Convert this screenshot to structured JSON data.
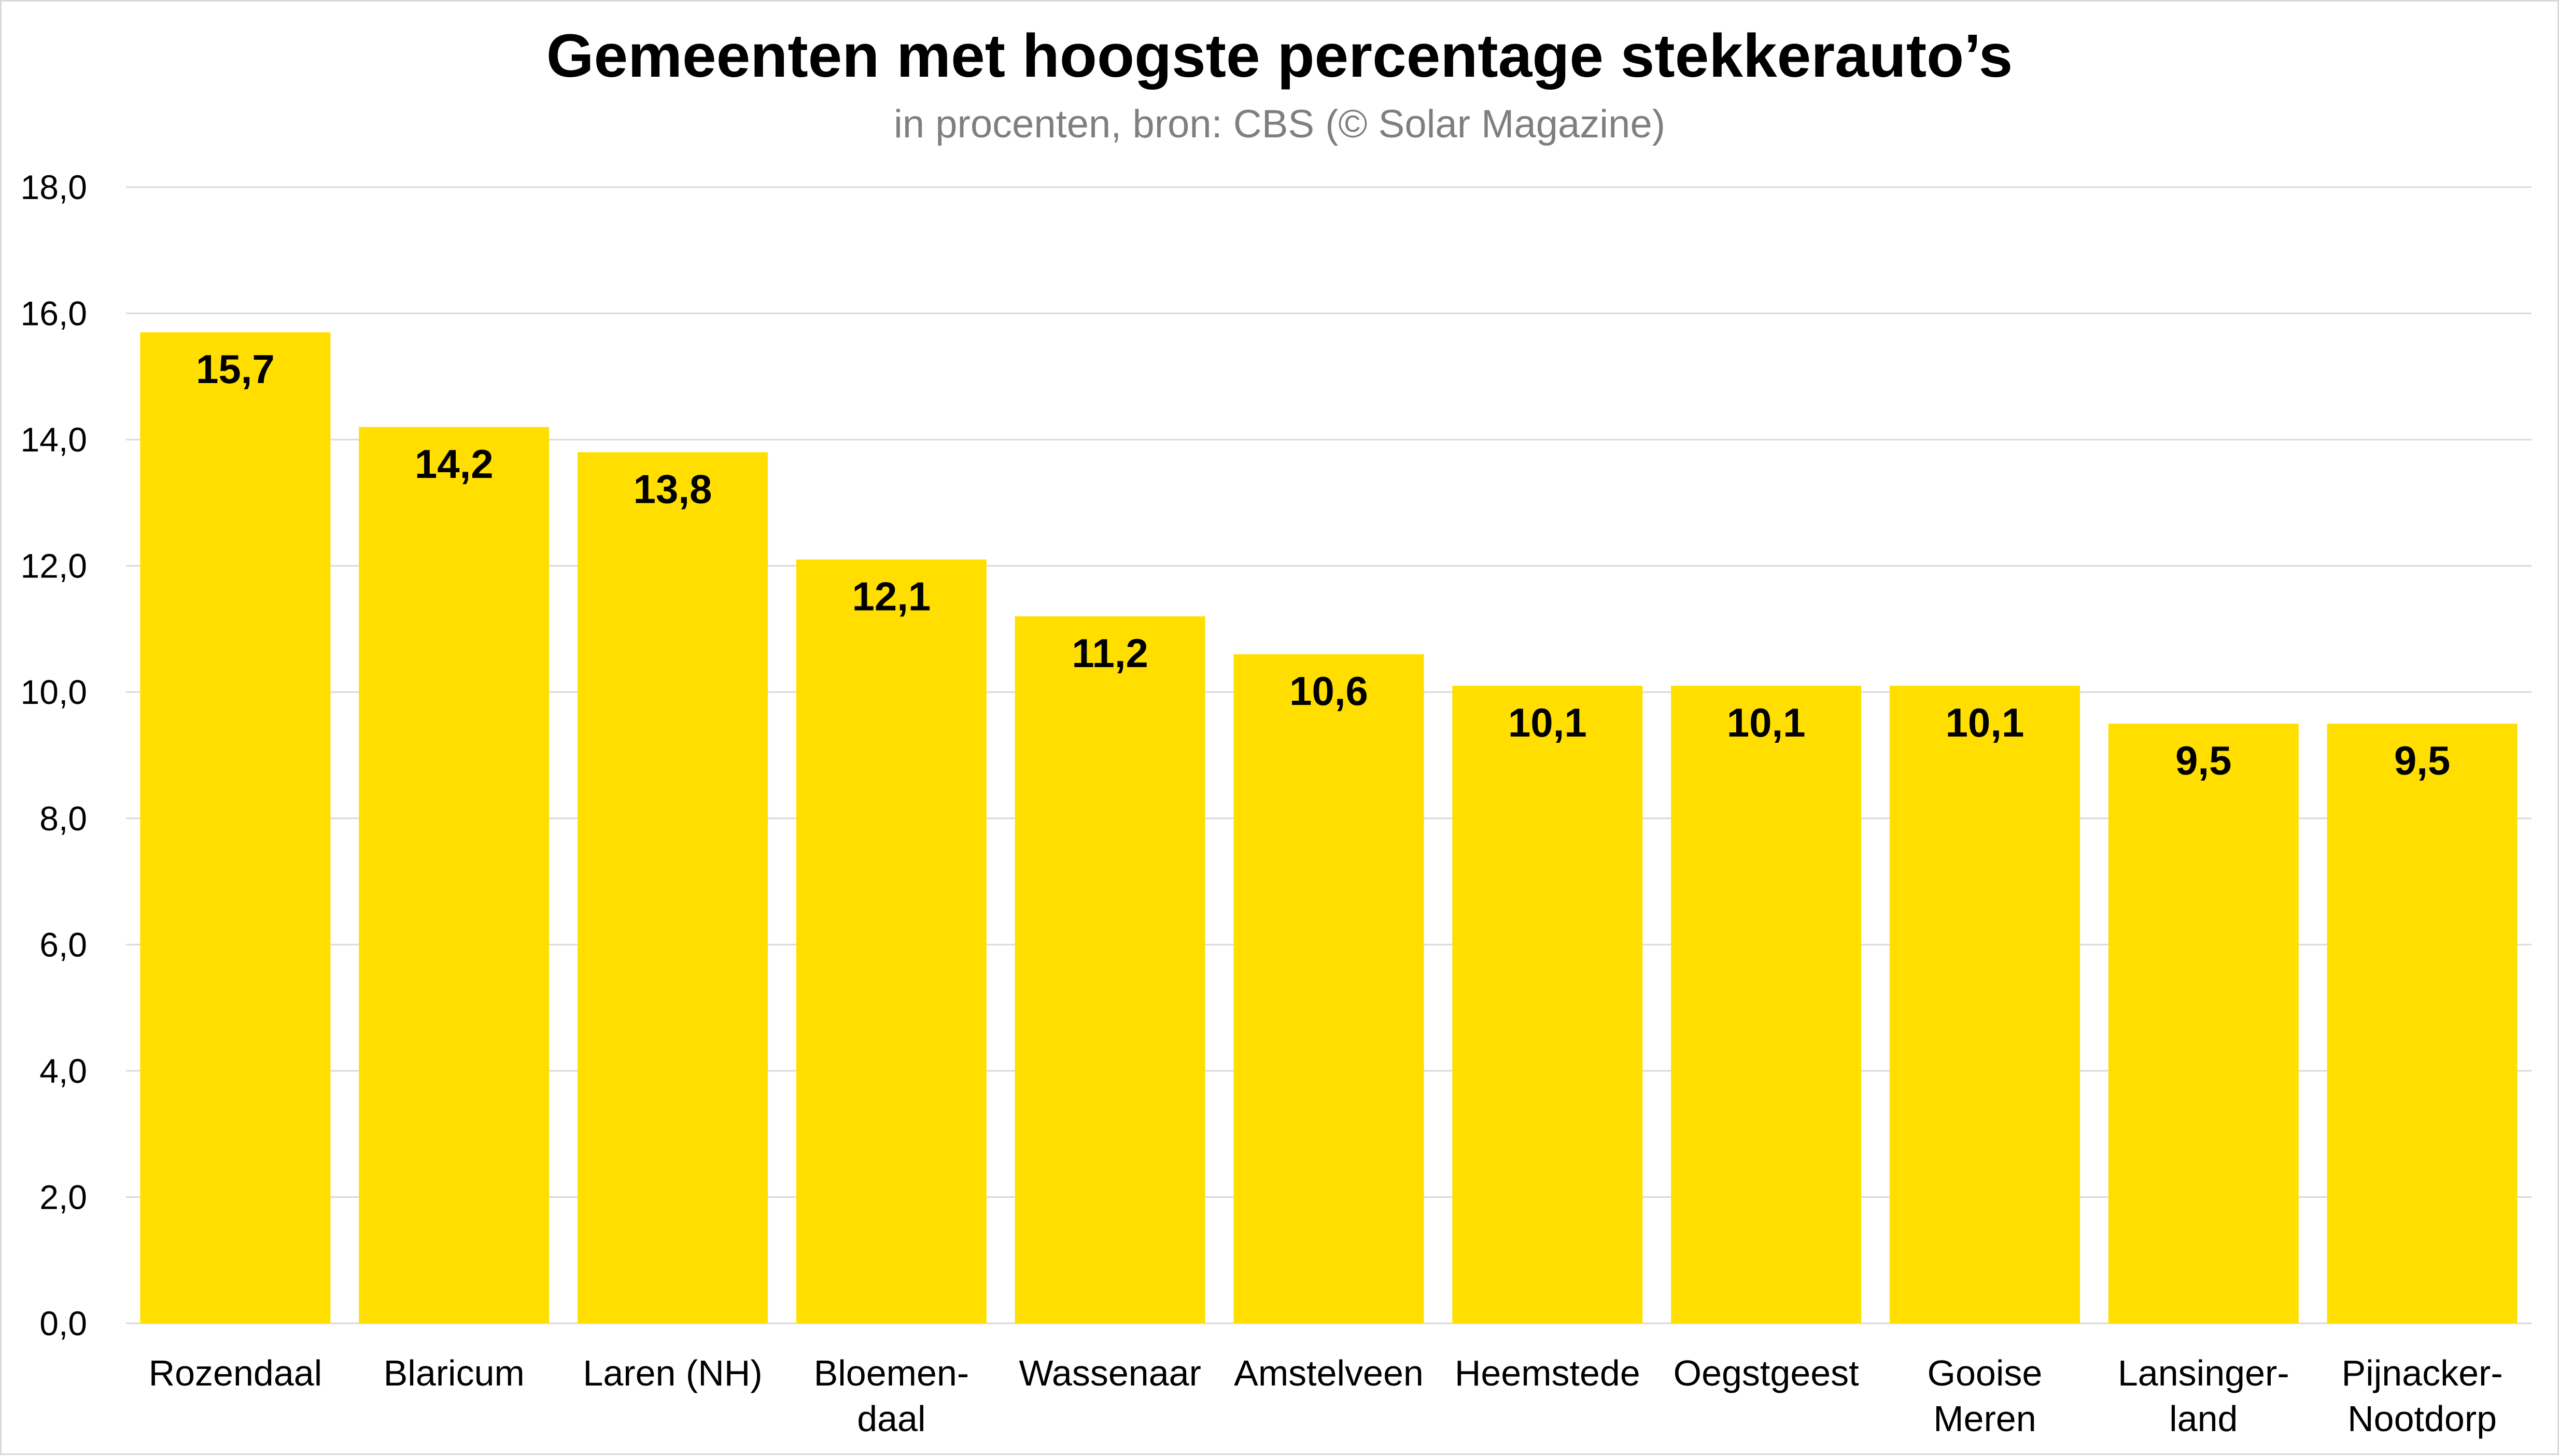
{
  "chart_data": {
    "type": "bar",
    "title": "Gemeenten met hoogste percentage stekkerauto’s",
    "subtitle": "in procenten, bron: CBS (© Solar Magazine)",
    "xlabel": "",
    "ylabel": "",
    "ylim": [
      0,
      18
    ],
    "yticks": [
      0,
      2,
      4,
      6,
      8,
      10,
      12,
      14,
      16,
      18
    ],
    "ytick_labels": [
      "0,0",
      "2,0",
      "4,0",
      "6,0",
      "8,0",
      "10,0",
      "12,0",
      "14,0",
      "16,0",
      "18,0"
    ],
    "grid": true,
    "legend": "none",
    "categories": [
      [
        "Rozendaal"
      ],
      [
        "Blaricum"
      ],
      [
        "Laren (NH)"
      ],
      [
        "Bloemen-",
        "daal"
      ],
      [
        "Wassenaar"
      ],
      [
        "Amstelveen"
      ],
      [
        "Heemstede"
      ],
      [
        "Oegstgeest"
      ],
      [
        "Gooise",
        "Meren"
      ],
      [
        "Lansinger-",
        "land"
      ],
      [
        "Pijnacker-",
        "Nootdorp"
      ]
    ],
    "values": [
      15.7,
      14.2,
      13.8,
      12.1,
      11.2,
      10.6,
      10.1,
      10.1,
      10.1,
      9.5,
      9.5
    ],
    "data_labels": [
      "15,7",
      "14,2",
      "13,8",
      "12,1",
      "11,2",
      "10,6",
      "10,1",
      "10,1",
      "10,1",
      "9,5",
      "9,5"
    ],
    "colors": {
      "bar": "#FFDE00",
      "grid": "#D9D9D9",
      "title": "#000000",
      "subtitle": "#7F7F7F"
    }
  }
}
